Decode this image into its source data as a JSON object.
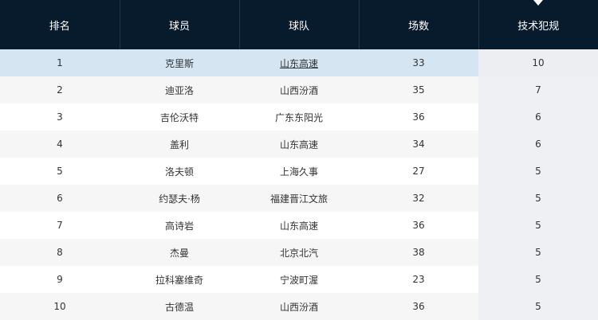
{
  "columns": [
    "排名",
    "球员",
    "球队",
    "场数",
    "技术犯规"
  ],
  "sort_column": "技术犯规",
  "sort_icon": "caret-down-icon",
  "colors": {
    "header_bg": "#081b2d",
    "highlight_row": "#d5e6f2",
    "sorted_column_bg": "#eef0f4"
  },
  "rows": [
    [
      "1",
      "克里斯",
      "山东高速",
      "33",
      "10"
    ],
    [
      "2",
      "迪亚洛",
      "山西汾酒",
      "35",
      "7"
    ],
    [
      "3",
      "吉伦沃特",
      "广东东阳光",
      "36",
      "6"
    ],
    [
      "4",
      "盖利",
      "山东高速",
      "34",
      "6"
    ],
    [
      "5",
      "洛夫顿",
      "上海久事",
      "27",
      "5"
    ],
    [
      "6",
      "约瑟夫·杨",
      "福建晋江文旅",
      "32",
      "5"
    ],
    [
      "7",
      "高诗岩",
      "山东高速",
      "36",
      "5"
    ],
    [
      "8",
      "杰曼",
      "北京北汽",
      "38",
      "5"
    ],
    [
      "9",
      "拉科塞维奇",
      "宁波町渥",
      "23",
      "5"
    ],
    [
      "10",
      "古德温",
      "山西汾酒",
      "36",
      "5"
    ]
  ]
}
